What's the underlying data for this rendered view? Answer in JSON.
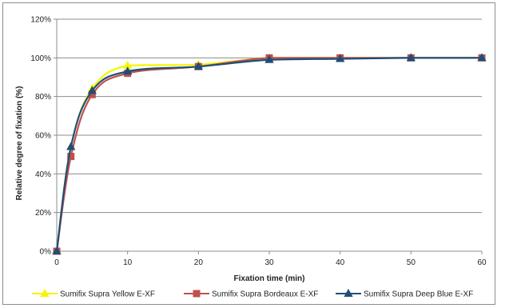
{
  "chart_data": {
    "type": "line",
    "xlabel": "Fixation time (min)",
    "ylabel": "Relative degree of fixation (%)",
    "x": [
      0,
      2,
      5,
      10,
      20,
      30,
      40,
      50,
      60
    ],
    "xticks": [
      "0",
      "10",
      "20",
      "30",
      "40",
      "50",
      "60"
    ],
    "xtick_values": [
      0,
      10,
      20,
      30,
      40,
      50,
      60
    ],
    "yticks": [
      "0%",
      "20%",
      "40%",
      "60%",
      "80%",
      "100%",
      "120%"
    ],
    "ytick_values": [
      0,
      20,
      40,
      60,
      80,
      100,
      120
    ],
    "xlim": [
      0,
      60
    ],
    "ylim": [
      0,
      120
    ],
    "grid": "horizontal",
    "legend_position": "bottom",
    "series": [
      {
        "name": "Sumifix Supra Yellow E-XF",
        "color": "#f5f500",
        "marker": "triangle",
        "values": [
          0,
          54,
          84,
          96,
          96.5,
          100,
          100,
          100,
          100
        ]
      },
      {
        "name": "Sumifix Supra Bordeaux E-XF",
        "color": "#c0504d",
        "marker": "square",
        "values": [
          0,
          49,
          81,
          92,
          95.5,
          100,
          100,
          100,
          100
        ]
      },
      {
        "name": "Sumifix Supra Deep Blue E-XF",
        "color": "#1f4e79",
        "marker": "triangle",
        "values": [
          0,
          54,
          83,
          93,
          95.5,
          99,
          99.5,
          100,
          100
        ]
      }
    ]
  }
}
